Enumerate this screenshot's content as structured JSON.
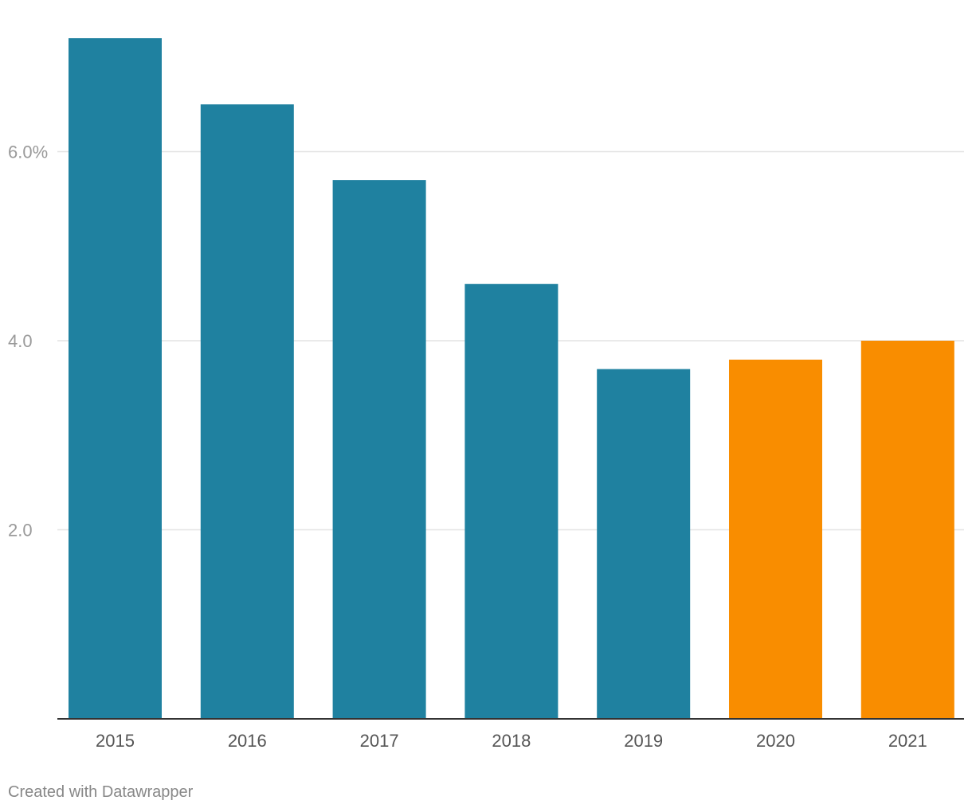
{
  "chart_data": {
    "type": "bar",
    "categories": [
      "2015",
      "2016",
      "2017",
      "2018",
      "2019",
      "2020",
      "2021"
    ],
    "values": [
      7.2,
      6.5,
      5.7,
      4.6,
      3.7,
      3.8,
      4.0
    ],
    "bar_colors": [
      "#1f81a0",
      "#1f81a0",
      "#1f81a0",
      "#1f81a0",
      "#1f81a0",
      "#f98d00",
      "#f98d00"
    ],
    "y_ticks": [
      {
        "value": 2,
        "label": "2.0"
      },
      {
        "value": 4,
        "label": "4.0"
      },
      {
        "value": 6,
        "label": "6.0%"
      }
    ],
    "ylim": [
      0,
      7.2
    ],
    "grid": true,
    "title": "",
    "xlabel": "",
    "ylabel": ""
  },
  "footer": {
    "credit": "Created with Datawrapper"
  },
  "colors": {
    "primary_bar": "#1f81a0",
    "highlight_bar": "#f98d00",
    "gridline": "#e3e3e3",
    "baseline": "#333333"
  }
}
